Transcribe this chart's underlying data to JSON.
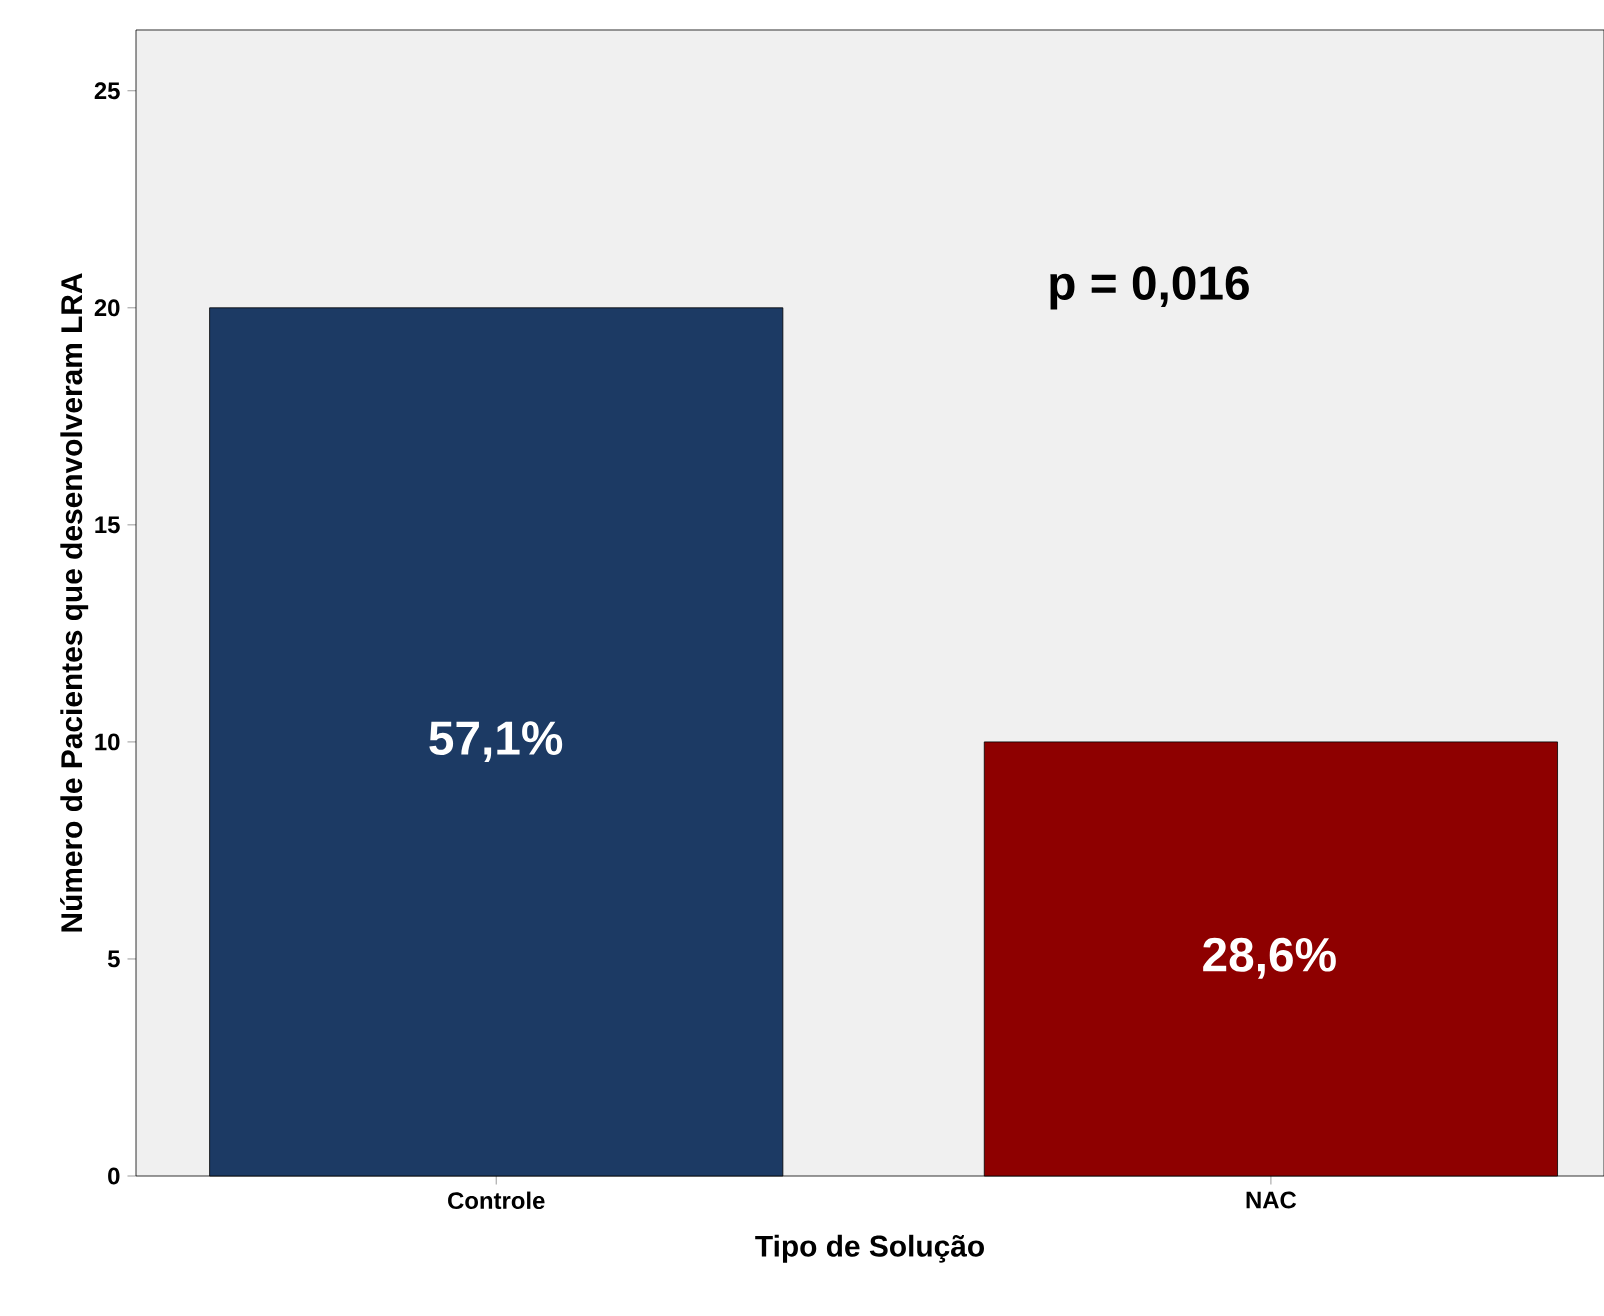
{
  "chart_data": {
    "type": "bar",
    "xlabel": "Tipo de Solução",
    "ylabel": "Número de Pacientes que desenvolveram LRA",
    "categories": [
      "Controle",
      "NAC"
    ],
    "values": [
      20,
      10
    ],
    "colors": [
      "#1c3a64",
      "#8e0000"
    ],
    "annotations": [
      "57,1%",
      "28,6%",
      "p = 0,016"
    ],
    "ylim": [
      0,
      26.4
    ],
    "yticks": [
      0,
      5,
      10,
      15,
      20,
      25
    ],
    "grid": false
  }
}
